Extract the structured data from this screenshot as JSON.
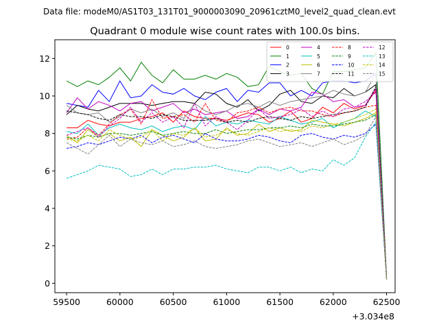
{
  "chart_data": {
    "type": "line",
    "suptitle": "Data file: modeM0/AS1T03_131T01_9000003090_20961cztM0_level2_quad_clean.evt",
    "title": "Quadrant 0 module wise count rates with 100.0s bins.",
    "xlabel": "",
    "ylabel": "",
    "x_offset_label": "+3.034e8",
    "xlim": [
      59390,
      62580
    ],
    "ylim": [
      -0.5,
      13.0
    ],
    "xticks": [
      59500,
      60000,
      60500,
      61000,
      61500,
      62000,
      62500
    ],
    "yticks": [
      0,
      2,
      4,
      6,
      8,
      10,
      12
    ],
    "grid": false,
    "legend": {
      "placement": "top-right",
      "ncol": 4
    },
    "x": [
      59500,
      59600,
      59700,
      59800,
      59900,
      60000,
      60100,
      60200,
      60300,
      60400,
      60500,
      60600,
      60700,
      60800,
      60900,
      61000,
      61100,
      61200,
      61300,
      61400,
      61500,
      61600,
      61700,
      61800,
      61900,
      62000,
      62100,
      62200,
      62300,
      62400,
      62500
    ],
    "series": [
      {
        "name": "0",
        "color": "#ff0000",
        "dash": "solid",
        "values": [
          8.3,
          8.3,
          8.7,
          8.5,
          8.4,
          8.6,
          8.6,
          8.8,
          8.9,
          9.1,
          8.6,
          9.2,
          8.9,
          8.8,
          8.8,
          8.7,
          8.9,
          9.1,
          9.0,
          8.6,
          8.8,
          9.2,
          8.6,
          8.8,
          9.4,
          9.1,
          9.6,
          9.3,
          9.5,
          10.3,
          0.3
        ]
      },
      {
        "name": "1",
        "color": "#008000",
        "dash": "solid",
        "values": [
          10.8,
          10.5,
          10.8,
          10.6,
          11.0,
          11.5,
          10.8,
          11.8,
          11.1,
          10.7,
          11.4,
          10.9,
          10.9,
          11.1,
          10.9,
          11.2,
          11.0,
          10.5,
          10.6,
          11.6,
          11.3,
          11.1,
          11.2,
          10.4,
          10.1,
          11.3,
          11.3,
          11.4,
          11.5,
          12.3,
          0.3
        ]
      },
      {
        "name": "2",
        "color": "#0000ff",
        "dash": "solid",
        "values": [
          9.6,
          9.5,
          9.4,
          10.3,
          9.7,
          10.8,
          9.9,
          10.0,
          10.6,
          10.2,
          10.1,
          10.4,
          10.0,
          9.8,
          10.2,
          10.4,
          9.7,
          10.3,
          10.2,
          10.7,
          10.7,
          10.0,
          10.3,
          10.0,
          10.7,
          10.8,
          10.8,
          10.7,
          10.8,
          11.2,
          0.2
        ]
      },
      {
        "name": "3",
        "color": "#000000",
        "dash": "solid",
        "values": [
          9.0,
          9.5,
          9.3,
          9.2,
          9.4,
          9.6,
          9.6,
          9.6,
          9.5,
          9.6,
          9.7,
          9.7,
          9.6,
          10.2,
          10.1,
          9.6,
          9.4,
          9.8,
          9.2,
          9.5,
          10.1,
          10.3,
          9.7,
          9.6,
          10.0,
          9.9,
          10.4,
          10.0,
          10.2,
          10.6,
          0.2
        ]
      },
      {
        "name": "4",
        "color": "#bf00bf",
        "dash": "solid",
        "values": [
          9.1,
          9.9,
          9.3,
          9.7,
          9.5,
          9.2,
          9.6,
          9.7,
          9.2,
          9.4,
          9.6,
          9.1,
          9.3,
          9.0,
          9.1,
          9.2,
          8.8,
          8.9,
          9.3,
          9.0,
          9.3,
          9.2,
          9.4,
          10.2,
          10.1,
          9.7,
          9.8,
          9.4,
          9.5,
          10.4,
          0.3
        ]
      },
      {
        "name": "5",
        "color": "#00bfbf",
        "dash": "solid",
        "values": [
          8.1,
          8.0,
          8.5,
          7.9,
          8.3,
          8.5,
          8.3,
          8.2,
          8.4,
          8.1,
          8.3,
          8.4,
          8.2,
          8.9,
          8.4,
          8.6,
          8.5,
          8.7,
          8.6,
          8.5,
          8.9,
          8.7,
          8.5,
          8.6,
          8.8,
          8.3,
          8.6,
          8.8,
          9.2,
          8.9,
          0.2
        ]
      },
      {
        "name": "6",
        "color": "#bfbf00",
        "dash": "solid",
        "values": [
          7.9,
          7.5,
          8.2,
          7.8,
          8.0,
          7.6,
          7.8,
          7.3,
          8.2,
          7.9,
          7.6,
          7.8,
          8.3,
          7.6,
          7.7,
          8.3,
          7.9,
          8.0,
          8.5,
          8.1,
          8.3,
          8.1,
          8.2,
          8.7,
          8.6,
          8.5,
          8.4,
          8.6,
          8.8,
          9.1,
          0.2
        ]
      },
      {
        "name": "7",
        "color": "#808080",
        "dash": "solid",
        "values": [
          9.5,
          9.1,
          9.0,
          9.1,
          8.6,
          8.9,
          9.3,
          9.1,
          9.3,
          8.9,
          9.1,
          8.8,
          9.6,
          9.2,
          9.0,
          9.2,
          9.5,
          9.6,
          9.4,
          9.7,
          9.5,
          9.7,
          9.8,
          9.9,
          10.0,
          10.3,
          10.1,
          10.0,
          10.2,
          11.2,
          0.2
        ]
      },
      {
        "name": "8",
        "color": "#ff0000",
        "dash": "dashed",
        "values": [
          7.7,
          7.8,
          8.3,
          7.9,
          8.5,
          9.0,
          9.3,
          8.5,
          9.8,
          8.8,
          8.9,
          9.0,
          8.6,
          9.6,
          8.7,
          8.6,
          9.1,
          9.2,
          9.4,
          9.1,
          9.3,
          9.4,
          9.2,
          9.2,
          9.0,
          8.9,
          9.1,
          9.2,
          9.4,
          9.5,
          0.2
        ]
      },
      {
        "name": "9",
        "color": "#008000",
        "dash": "dashed",
        "values": [
          7.8,
          7.7,
          7.9,
          7.8,
          8.0,
          8.0,
          7.9,
          8.0,
          8.1,
          7.9,
          8.0,
          8.1,
          8.0,
          8.0,
          8.2,
          8.0,
          8.1,
          8.2,
          8.2,
          8.3,
          8.3,
          8.4,
          8.3,
          8.5,
          8.4,
          8.4,
          8.5,
          8.6,
          8.7,
          9.0,
          0.2
        ]
      },
      {
        "name": "10",
        "color": "#0000ff",
        "dash": "dashed",
        "values": [
          7.2,
          7.3,
          7.5,
          7.4,
          7.6,
          7.8,
          7.7,
          7.9,
          7.5,
          7.8,
          7.9,
          7.7,
          7.5,
          8.0,
          7.7,
          7.6,
          7.6,
          7.7,
          7.9,
          7.8,
          7.6,
          7.5,
          7.9,
          8.0,
          7.8,
          7.7,
          7.9,
          7.8,
          8.0,
          8.5,
          0.2
        ]
      },
      {
        "name": "11",
        "color": "#000000",
        "dash": "dashed",
        "values": [
          9.2,
          9.1,
          9.0,
          8.8,
          8.7,
          9.0,
          8.9,
          8.9,
          8.8,
          9.0,
          8.9,
          8.7,
          8.7,
          8.7,
          8.8,
          8.6,
          8.7,
          8.6,
          8.8,
          8.9,
          8.8,
          8.7,
          8.9,
          8.8,
          8.9,
          9.0,
          9.1,
          9.2,
          9.4,
          10.5,
          0.2
        ]
      },
      {
        "name": "12",
        "color": "#bf00bf",
        "dash": "dashed",
        "values": [
          7.9,
          8.1,
          8.3,
          7.8,
          8.4,
          8.8,
          9.4,
          8.6,
          9.1,
          8.6,
          8.9,
          8.3,
          9.6,
          8.4,
          8.9,
          8.6,
          8.2,
          8.7,
          9.3,
          8.8,
          8.9,
          9.0,
          9.3,
          8.9,
          9.2,
          8.9,
          9.3,
          9.4,
          9.7,
          10.2,
          0.2
        ]
      },
      {
        "name": "13",
        "color": "#00bfbf",
        "dash": "dashed",
        "values": [
          5.6,
          5.8,
          6.0,
          6.3,
          6.2,
          6.1,
          5.7,
          5.8,
          6.1,
          5.8,
          6.1,
          6.1,
          6.2,
          6.2,
          6.3,
          6.1,
          6.0,
          5.9,
          6.2,
          6.2,
          6.0,
          6.2,
          5.9,
          6.1,
          6.0,
          6.6,
          6.3,
          6.7,
          7.8,
          8.6,
          0.2
        ]
      },
      {
        "name": "14",
        "color": "#bfbf00",
        "dash": "dashed",
        "values": [
          7.7,
          7.6,
          7.9,
          7.6,
          8.2,
          7.9,
          7.7,
          7.8,
          8.2,
          7.6,
          8.0,
          7.9,
          8.3,
          7.8,
          7.9,
          8.2,
          8.0,
          7.9,
          8.1,
          8.3,
          8.1,
          8.2,
          8.1,
          8.4,
          8.3,
          8.5,
          8.6,
          8.8,
          9.0,
          9.3,
          0.2
        ]
      },
      {
        "name": "15",
        "color": "#808080",
        "dash": "dashed",
        "values": [
          7.5,
          7.2,
          6.9,
          7.4,
          7.9,
          7.3,
          7.7,
          7.5,
          7.4,
          7.6,
          7.3,
          7.4,
          7.6,
          7.3,
          7.2,
          7.3,
          7.4,
          7.6,
          7.7,
          7.5,
          7.3,
          7.4,
          7.5,
          7.3,
          7.5,
          7.7,
          7.4,
          7.6,
          7.9,
          8.9,
          0.2
        ]
      }
    ]
  }
}
